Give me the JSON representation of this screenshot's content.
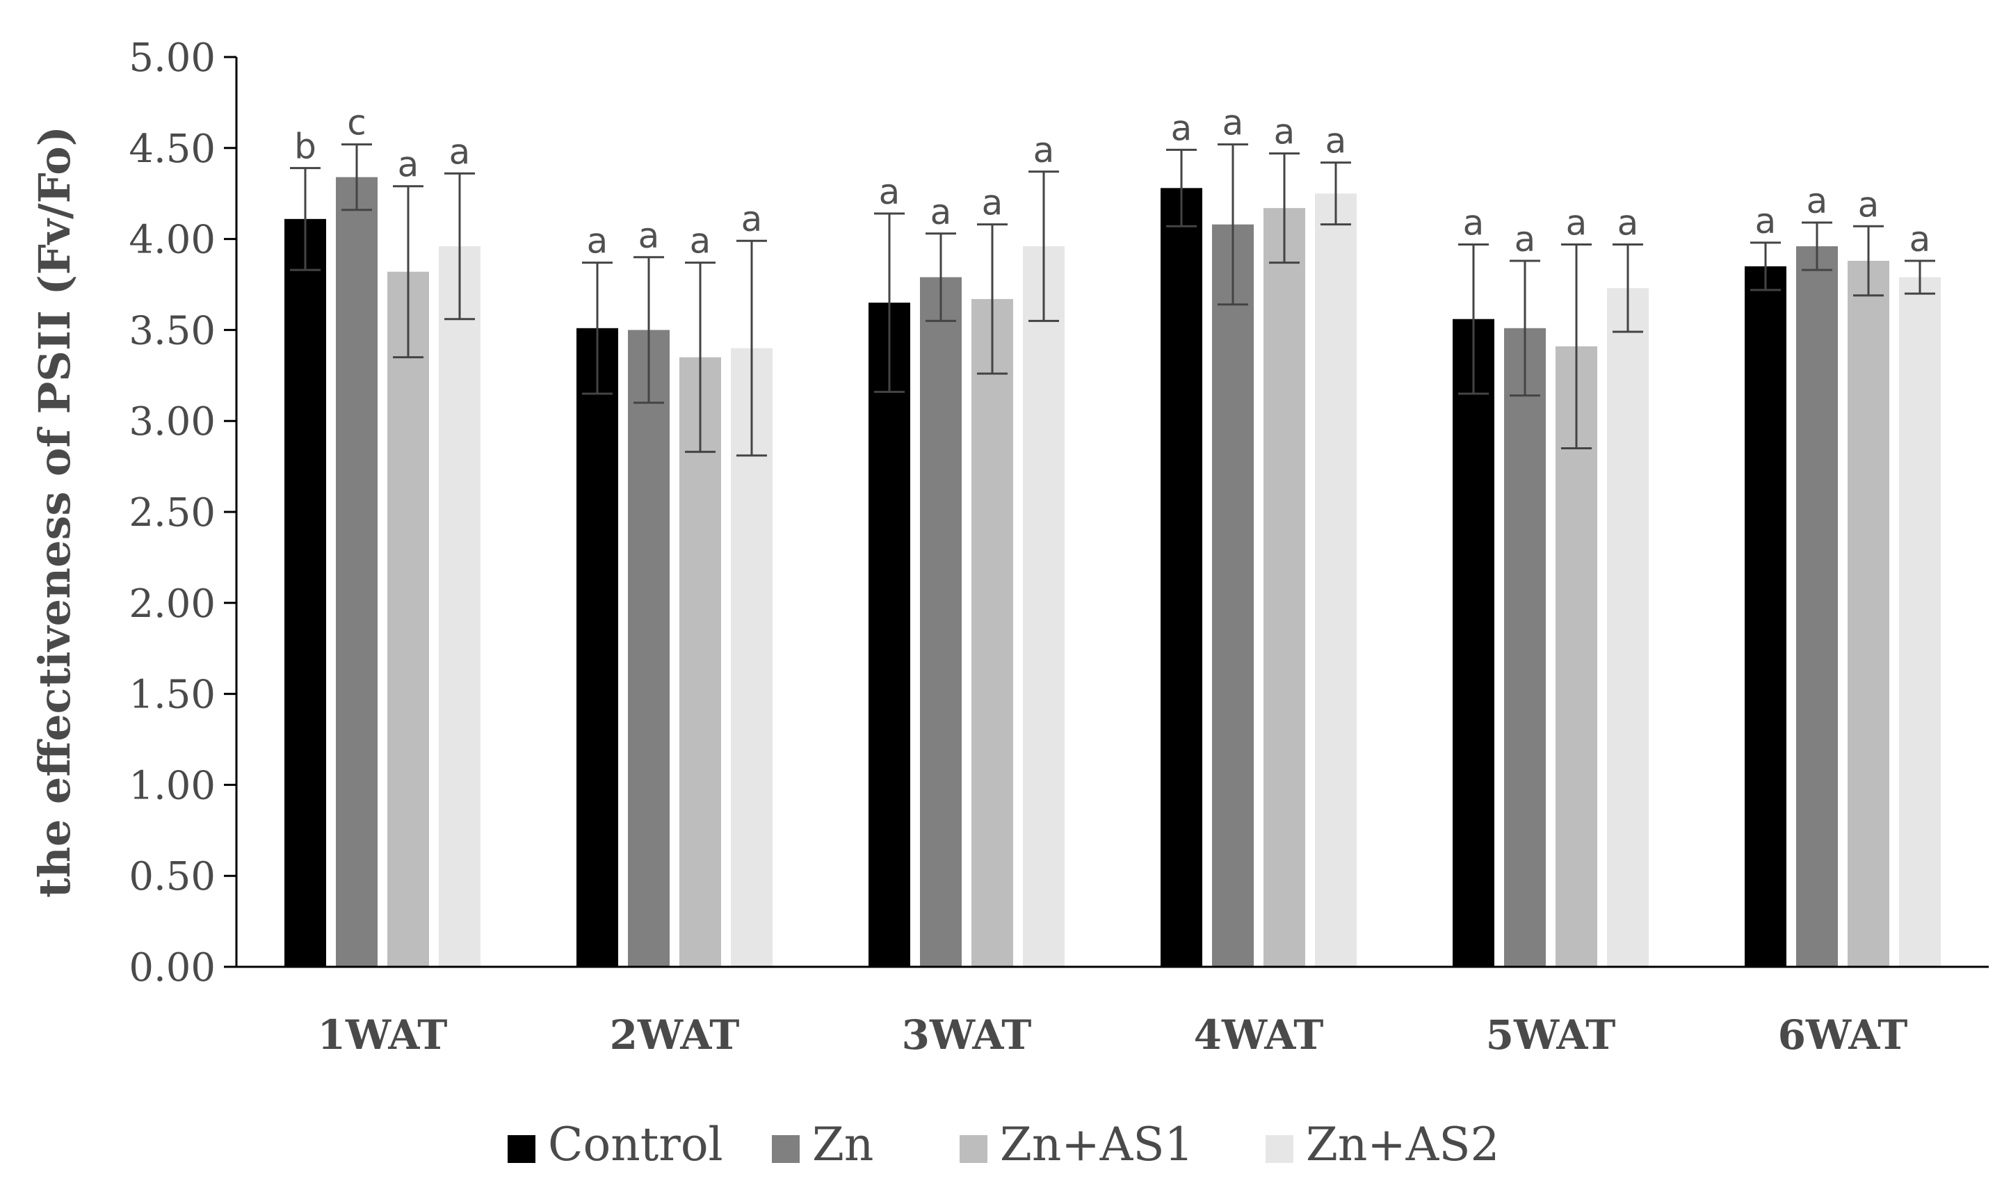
{
  "chart_data": {
    "type": "bar",
    "title": "",
    "xlabel": "",
    "ylabel": "the effectiveness of PSII (Fv/Fo)",
    "ylim": [
      0,
      5
    ],
    "yticks": [
      "0.00",
      "0.50",
      "1.00",
      "1.50",
      "2.00",
      "2.50",
      "3.00",
      "3.50",
      "4.00",
      "4.50",
      "5.00"
    ],
    "grid": false,
    "legend_position": "bottom",
    "categories": [
      "1WAT",
      "2WAT",
      "3WAT",
      "4WAT",
      "5WAT",
      "6WAT"
    ],
    "series": [
      {
        "name": "Control",
        "color": "#000000",
        "values": [
          4.11,
          3.51,
          3.65,
          4.28,
          3.56,
          3.85
        ],
        "errors": [
          0.28,
          0.36,
          0.49,
          0.21,
          0.41,
          0.13
        ],
        "labels": [
          "b",
          "a",
          "a",
          "a",
          "a",
          "a"
        ]
      },
      {
        "name": "Zn",
        "color": "#808080",
        "values": [
          4.34,
          3.5,
          3.79,
          4.08,
          3.51,
          3.96
        ],
        "errors": [
          0.18,
          0.4,
          0.24,
          0.44,
          0.37,
          0.13
        ],
        "labels": [
          "c",
          "a",
          "a",
          "a",
          "a",
          "a"
        ]
      },
      {
        "name": "Zn+AS1",
        "color": "#bdbdbd",
        "values": [
          3.82,
          3.35,
          3.67,
          4.17,
          3.41,
          3.88
        ],
        "errors": [
          0.47,
          0.52,
          0.41,
          0.3,
          0.56,
          0.19
        ],
        "labels": [
          "a",
          "a",
          "a",
          "a",
          "a",
          "a"
        ]
      },
      {
        "name": "Zn+AS2",
        "color": "#e6e6e6",
        "values": [
          3.96,
          3.4,
          3.96,
          4.25,
          3.73,
          3.79
        ],
        "errors": [
          0.4,
          0.59,
          0.41,
          0.17,
          0.24,
          0.09
        ],
        "labels": [
          "a",
          "a",
          "a",
          "a",
          "a",
          "a"
        ]
      }
    ]
  }
}
